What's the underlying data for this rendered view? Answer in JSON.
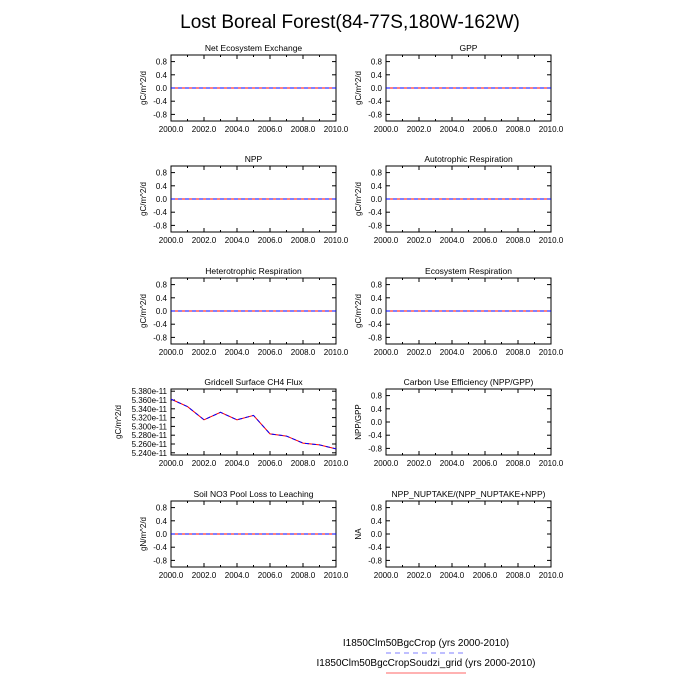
{
  "figure": {
    "title": "Lost Boreal Forest(84-77S,180W-162W)"
  },
  "legend": {
    "items": [
      {
        "label": "I1850Clm50BgcCrop (yrs 2000-2010)",
        "color": "#0000ff",
        "style": "dashed"
      },
      {
        "label": "I1850Clm50BgcCropSoudzi_grid (yrs 2000-2010)",
        "color": "#ff0000",
        "style": "solid"
      }
    ]
  },
  "chart_data": [
    {
      "type": "line",
      "title": "Net Ecosystem Exchange",
      "ylabel": "gC/m^2/d",
      "x": [
        2000,
        2001,
        2002,
        2003,
        2004,
        2005,
        2006,
        2007,
        2008,
        2009,
        2010
      ],
      "xlim": [
        2000,
        2010
      ],
      "ylim": [
        -1,
        1
      ],
      "xticks": [
        "2000.0",
        "2002.0",
        "2004.0",
        "2006.0",
        "2008.0",
        "2010.0"
      ],
      "yticks": [
        "0.8",
        "0.4",
        "0.0",
        "-0.4",
        "-0.8"
      ],
      "series": [
        {
          "values": [
            0,
            0,
            0,
            0,
            0,
            0,
            0,
            0,
            0,
            0,
            0
          ]
        },
        {
          "values": [
            0,
            0,
            0,
            0,
            0,
            0,
            0,
            0,
            0,
            0,
            0
          ]
        }
      ]
    },
    {
      "type": "line",
      "title": "GPP",
      "ylabel": "gC/m^2/d",
      "x": [
        2000,
        2001,
        2002,
        2003,
        2004,
        2005,
        2006,
        2007,
        2008,
        2009,
        2010
      ],
      "xlim": [
        2000,
        2010
      ],
      "ylim": [
        -1,
        1
      ],
      "xticks": [
        "2000.0",
        "2002.0",
        "2004.0",
        "2006.0",
        "2008.0",
        "2010.0"
      ],
      "yticks": [
        "0.8",
        "0.4",
        "0.0",
        "-0.4",
        "-0.8"
      ],
      "series": [
        {
          "values": [
            0,
            0,
            0,
            0,
            0,
            0,
            0,
            0,
            0,
            0,
            0
          ]
        },
        {
          "values": [
            0,
            0,
            0,
            0,
            0,
            0,
            0,
            0,
            0,
            0,
            0
          ]
        }
      ]
    },
    {
      "type": "line",
      "title": "NPP",
      "ylabel": "gC/m^2/d",
      "x": [
        2000,
        2001,
        2002,
        2003,
        2004,
        2005,
        2006,
        2007,
        2008,
        2009,
        2010
      ],
      "xlim": [
        2000,
        2010
      ],
      "ylim": [
        -1,
        1
      ],
      "xticks": [
        "2000.0",
        "2002.0",
        "2004.0",
        "2006.0",
        "2008.0",
        "2010.0"
      ],
      "yticks": [
        "0.8",
        "0.4",
        "0.0",
        "-0.4",
        "-0.8"
      ],
      "series": [
        {
          "values": [
            0,
            0,
            0,
            0,
            0,
            0,
            0,
            0,
            0,
            0,
            0
          ]
        },
        {
          "values": [
            0,
            0,
            0,
            0,
            0,
            0,
            0,
            0,
            0,
            0,
            0
          ]
        }
      ]
    },
    {
      "type": "line",
      "title": "Autotrophic Respiration",
      "ylabel": "gC/m^2/d",
      "x": [
        2000,
        2001,
        2002,
        2003,
        2004,
        2005,
        2006,
        2007,
        2008,
        2009,
        2010
      ],
      "xlim": [
        2000,
        2010
      ],
      "ylim": [
        -1,
        1
      ],
      "xticks": [
        "2000.0",
        "2002.0",
        "2004.0",
        "2006.0",
        "2008.0",
        "2010.0"
      ],
      "yticks": [
        "0.8",
        "0.4",
        "0.0",
        "-0.4",
        "-0.8"
      ],
      "series": [
        {
          "values": [
            0,
            0,
            0,
            0,
            0,
            0,
            0,
            0,
            0,
            0,
            0
          ]
        },
        {
          "values": [
            0,
            0,
            0,
            0,
            0,
            0,
            0,
            0,
            0,
            0,
            0
          ]
        }
      ]
    },
    {
      "type": "line",
      "title": "Heterotrophic Respiration",
      "ylabel": "gC/m^2/d",
      "x": [
        2000,
        2001,
        2002,
        2003,
        2004,
        2005,
        2006,
        2007,
        2008,
        2009,
        2010
      ],
      "xlim": [
        2000,
        2010
      ],
      "ylim": [
        -1,
        1
      ],
      "xticks": [
        "2000.0",
        "2002.0",
        "2004.0",
        "2006.0",
        "2008.0",
        "2010.0"
      ],
      "yticks": [
        "0.8",
        "0.4",
        "0.0",
        "-0.4",
        "-0.8"
      ],
      "series": [
        {
          "values": [
            0,
            0,
            0,
            0,
            0,
            0,
            0,
            0,
            0,
            0,
            0
          ]
        },
        {
          "values": [
            0,
            0,
            0,
            0,
            0,
            0,
            0,
            0,
            0,
            0,
            0
          ]
        }
      ]
    },
    {
      "type": "line",
      "title": "Ecosystem Respiration",
      "ylabel": "gC/m^2/d",
      "x": [
        2000,
        2001,
        2002,
        2003,
        2004,
        2005,
        2006,
        2007,
        2008,
        2009,
        2010
      ],
      "xlim": [
        2000,
        2010
      ],
      "ylim": [
        -1,
        1
      ],
      "xticks": [
        "2000.0",
        "2002.0",
        "2004.0",
        "2006.0",
        "2008.0",
        "2010.0"
      ],
      "yticks": [
        "0.8",
        "0.4",
        "0.0",
        "-0.4",
        "-0.8"
      ],
      "series": [
        {
          "values": [
            0,
            0,
            0,
            0,
            0,
            0,
            0,
            0,
            0,
            0,
            0
          ]
        },
        {
          "values": [
            0,
            0,
            0,
            0,
            0,
            0,
            0,
            0,
            0,
            0,
            0
          ]
        }
      ]
    },
    {
      "type": "line",
      "title": "Gridcell Surface CH4 Flux",
      "ylabel": "gC/m^2/d",
      "x": [
        2000,
        2001,
        2002,
        2003,
        2004,
        2005,
        2006,
        2007,
        2008,
        2009,
        2010
      ],
      "xlim": [
        2000,
        2010
      ],
      "ylim": [
        5.235e-11,
        5.385e-11
      ],
      "xticks": [
        "2000.0",
        "2002.0",
        "2004.0",
        "2006.0",
        "2008.0",
        "2010.0"
      ],
      "yticks": [
        "5.380e-11",
        "5.360e-11",
        "5.340e-11",
        "5.320e-11",
        "5.300e-11",
        "5.280e-11",
        "5.260e-11",
        "5.240e-11"
      ],
      "series": [
        {
          "values": [
            5.362e-11,
            5.345e-11,
            5.315e-11,
            5.332e-11,
            5.315e-11,
            5.325e-11,
            5.283e-11,
            5.278e-11,
            5.262e-11,
            5.258e-11,
            5.249e-11
          ]
        },
        {
          "values": [
            5.362e-11,
            5.345e-11,
            5.315e-11,
            5.332e-11,
            5.315e-11,
            5.325e-11,
            5.283e-11,
            5.278e-11,
            5.262e-11,
            5.258e-11,
            5.249e-11
          ]
        }
      ]
    },
    {
      "type": "line",
      "title": "Carbon Use Efficiency (NPP/GPP)",
      "ylabel": "NPP/GPP",
      "x": [
        2000,
        2001,
        2002,
        2003,
        2004,
        2005,
        2006,
        2007,
        2008,
        2009,
        2010
      ],
      "xlim": [
        2000,
        2010
      ],
      "ylim": [
        -1,
        1
      ],
      "xticks": [
        "2000.0",
        "2002.0",
        "2004.0",
        "2006.0",
        "2008.0",
        "2010.0"
      ],
      "yticks": [
        "0.8",
        "0.4",
        "0.0",
        "-0.4",
        "-0.8"
      ],
      "series": []
    },
    {
      "type": "line",
      "title": "Soil NO3 Pool Loss to Leaching",
      "ylabel": "gN/m^2/d",
      "x": [
        2000,
        2001,
        2002,
        2003,
        2004,
        2005,
        2006,
        2007,
        2008,
        2009,
        2010
      ],
      "xlim": [
        2000,
        2010
      ],
      "ylim": [
        -1,
        1
      ],
      "xticks": [
        "2000.0",
        "2002.0",
        "2004.0",
        "2006.0",
        "2008.0",
        "2010.0"
      ],
      "yticks": [
        "0.8",
        "0.4",
        "0.0",
        "-0.4",
        "-0.8"
      ],
      "series": [
        {
          "values": [
            0,
            0,
            0,
            0,
            0,
            0,
            0,
            0,
            0,
            0,
            0
          ]
        },
        {
          "values": [
            0,
            0,
            0,
            0,
            0,
            0,
            0,
            0,
            0,
            0,
            0
          ]
        }
      ]
    },
    {
      "type": "line",
      "title": "NPP_NUPTAKE/(NPP_NUPTAKE+NPP)",
      "ylabel": "NA",
      "x": [
        2000,
        2001,
        2002,
        2003,
        2004,
        2005,
        2006,
        2007,
        2008,
        2009,
        2010
      ],
      "xlim": [
        2000,
        2010
      ],
      "ylim": [
        -1,
        1
      ],
      "xticks": [
        "2000.0",
        "2002.0",
        "2004.0",
        "2006.0",
        "2008.0",
        "2010.0"
      ],
      "yticks": [
        "0.8",
        "0.4",
        "0.0",
        "-0.4",
        "-0.8"
      ],
      "series": []
    }
  ],
  "series_styles": [
    {
      "color": "#0000ff",
      "dash": "4,3",
      "width": 1
    },
    {
      "color": "#ff0000",
      "dash": "",
      "width": 1
    }
  ]
}
